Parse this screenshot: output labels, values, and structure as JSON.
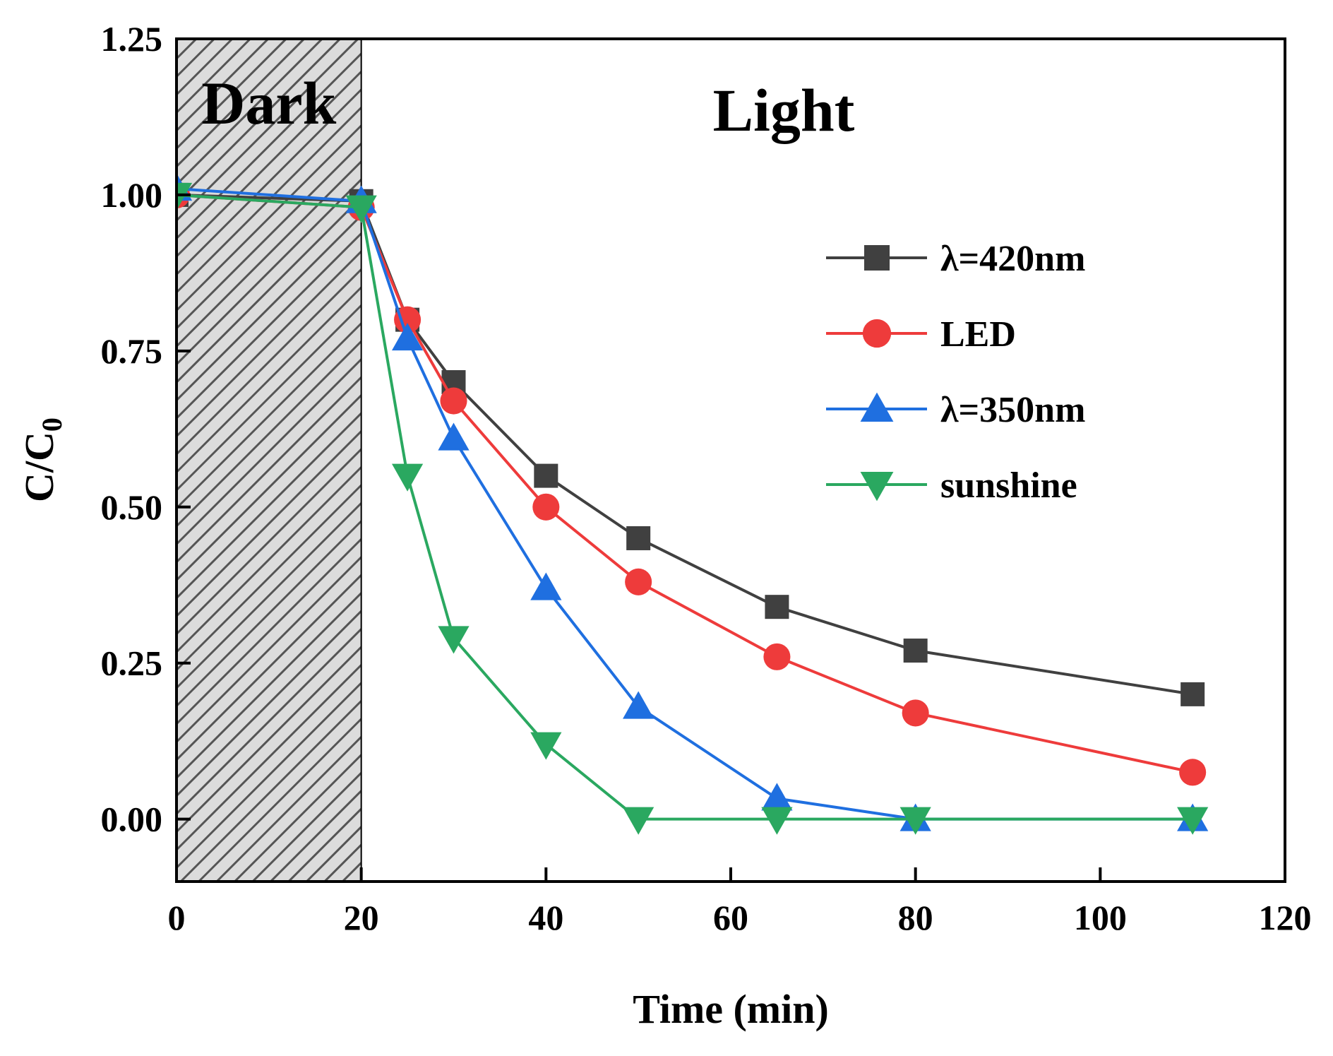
{
  "chart_data": {
    "type": "line",
    "xlabel": "Time (min)",
    "ylabel": "C/C",
    "ylabel_subscript": "0",
    "xlim": [
      0,
      120
    ],
    "ylim": [
      -0.1,
      1.25
    ],
    "x_ticks": [
      0,
      20,
      40,
      60,
      80,
      100,
      120
    ],
    "x_tick_labels": [
      "0",
      "20",
      "40",
      "60",
      "80",
      "100",
      "120"
    ],
    "y_ticks": [
      0,
      0.25,
      0.5,
      0.75,
      1,
      1.25
    ],
    "y_tick_labels": [
      "0.00",
      "0.25",
      "0.50",
      "0.75",
      "1.00",
      "1.25"
    ],
    "grid": false,
    "legend_position": "right",
    "regions": [
      {
        "label": "Dark",
        "x_start": 0,
        "x_end": 20,
        "hatched": true
      },
      {
        "label": "Light",
        "x_start": 20,
        "x_end": 120,
        "hatched": false
      }
    ],
    "x": [
      0,
      20,
      25,
      30,
      40,
      50,
      65,
      80,
      110
    ],
    "series": [
      {
        "name": "λ=420nm",
        "color": "#404040",
        "marker": "square",
        "values": [
          1.0,
          0.99,
          0.8,
          0.7,
          0.55,
          0.45,
          0.34,
          0.27,
          0.2
        ]
      },
      {
        "name": "LED",
        "color": "#ee3b3b",
        "marker": "circle",
        "values": [
          1.0,
          0.98,
          0.8,
          0.67,
          0.5,
          0.38,
          0.26,
          0.17,
          0.075
        ]
      },
      {
        "name": "λ=350nm",
        "color": "#1f6fe0",
        "marker": "triangle-up",
        "values": [
          1.01,
          0.99,
          0.77,
          0.61,
          0.37,
          0.18,
          0.033,
          0.0,
          0.0
        ]
      },
      {
        "name": "sunshine",
        "color": "#2aa860",
        "marker": "triangle-down",
        "values": [
          1.0,
          0.98,
          0.55,
          0.29,
          0.12,
          0.0,
          0.0,
          0.0,
          0.0
        ]
      }
    ]
  }
}
